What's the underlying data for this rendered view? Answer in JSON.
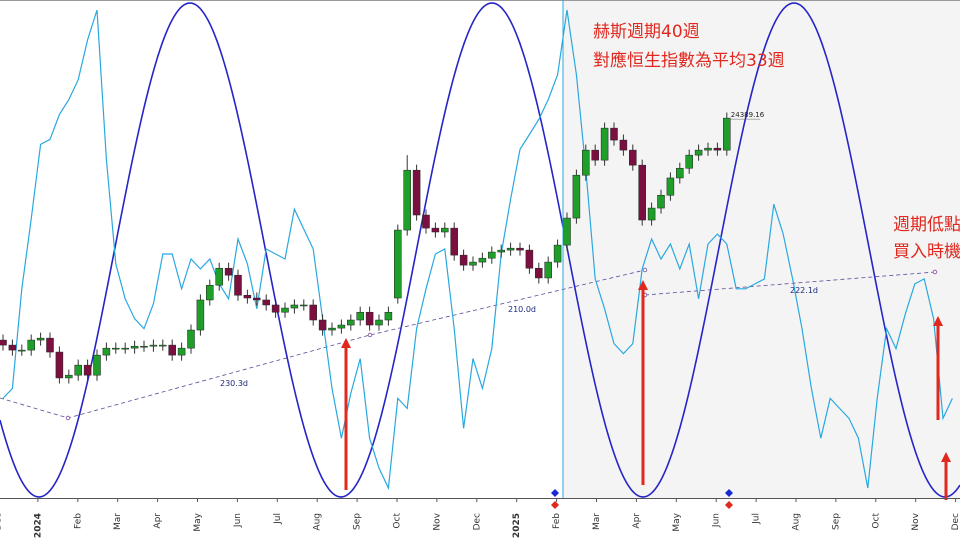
{
  "chart_data": {
    "type": "candlestick",
    "x_labels": [
      "Dec",
      "2024",
      "Feb",
      "Mar",
      "Apr",
      "May",
      "Jun",
      "Jul",
      "Aug",
      "Sep",
      "Oct",
      "Nov",
      "Dec",
      "2025",
      "Feb",
      "Mar",
      "Apr",
      "May",
      "Jun",
      "Jul",
      "Aug",
      "Sep",
      "Oct",
      "Nov",
      "Dec"
    ],
    "year_label_color": "#c00000",
    "ylim": [
      10750,
      28630
    ],
    "candles": {
      "up_color": "#1f9e2a",
      "down_color": "#7b1040",
      "open": [
        16420,
        16240,
        16060,
        16060,
        16420,
        16490,
        15990,
        15060,
        15160,
        15520,
        15160,
        15880,
        16130,
        16130,
        16130,
        16200,
        16200,
        16240,
        16240,
        15880,
        16130,
        16780,
        17860,
        18390,
        19000,
        18750,
        18030,
        17930,
        17860,
        17680,
        17420,
        17570,
        17680,
        17680,
        17140,
        16780,
        16850,
        16960,
        17140,
        17420,
        16960,
        17140,
        17930,
        20370,
        22520,
        20910,
        20440,
        20300,
        20440,
        19470,
        19110,
        19220,
        19360,
        19580,
        19650,
        19720,
        19650,
        19000,
        18650,
        19220,
        19830,
        20800,
        22340,
        23240,
        22880,
        24030,
        23600,
        23240,
        22700,
        20730,
        21160,
        21620,
        22240,
        22590,
        23060,
        23240,
        23310,
        23240
      ],
      "high": [
        16620,
        16440,
        16260,
        16620,
        16690,
        16690,
        16190,
        15360,
        15720,
        15720,
        16080,
        16330,
        16330,
        16330,
        16400,
        16400,
        16440,
        16440,
        16440,
        16330,
        16980,
        18060,
        18590,
        19200,
        19200,
        18950,
        18230,
        18130,
        18060,
        17880,
        17770,
        17880,
        17880,
        17880,
        17340,
        17050,
        17160,
        17340,
        17620,
        17620,
        17340,
        17620,
        20570,
        23060,
        22720,
        21110,
        20640,
        20640,
        20640,
        19670,
        19420,
        19560,
        19780,
        19850,
        19920,
        19920,
        19850,
        19200,
        19420,
        20030,
        21000,
        22540,
        23440,
        23440,
        24230,
        24230,
        23800,
        23440,
        22900,
        21360,
        21820,
        22440,
        22790,
        23260,
        23440,
        23510,
        23510,
        24590
      ],
      "low": [
        16040,
        15860,
        15860,
        15860,
        16220,
        15790,
        14860,
        14860,
        14960,
        14960,
        14960,
        15680,
        15930,
        15930,
        15930,
        16000,
        16000,
        16040,
        15680,
        15680,
        15930,
        16580,
        17660,
        18190,
        18550,
        17830,
        17730,
        17660,
        17480,
        17220,
        17220,
        17370,
        17480,
        16940,
        16580,
        16580,
        16650,
        16760,
        16940,
        16760,
        16760,
        16940,
        17730,
        20170,
        20710,
        20240,
        20100,
        20100,
        19270,
        18910,
        18910,
        19020,
        19160,
        19380,
        19450,
        19450,
        18800,
        18450,
        18450,
        19020,
        19630,
        20600,
        22140,
        22680,
        22680,
        23400,
        23040,
        22500,
        20530,
        20530,
        20960,
        21420,
        22040,
        22390,
        22860,
        23040,
        23040,
        23040
      ],
      "close": [
        16240,
        16060,
        16060,
        16420,
        16490,
        15990,
        15060,
        15160,
        15520,
        15160,
        15880,
        16130,
        16130,
        16130,
        16200,
        16200,
        16240,
        16240,
        15880,
        16130,
        16780,
        17860,
        18390,
        19000,
        18750,
        18030,
        17930,
        17860,
        17680,
        17420,
        17570,
        17680,
        17680,
        17140,
        16780,
        16850,
        16960,
        17140,
        17420,
        16960,
        17140,
        17420,
        20370,
        22520,
        20910,
        20440,
        20300,
        20440,
        19470,
        19110,
        19220,
        19360,
        19580,
        19650,
        19720,
        19650,
        19000,
        18650,
        19220,
        19830,
        20800,
        22340,
        23240,
        22880,
        24030,
        23600,
        23240,
        22700,
        20730,
        21160,
        21620,
        22240,
        22590,
        23060,
        23240,
        23310,
        23240,
        24389.16
      ]
    },
    "oscillator": {
      "color": "#29a8e0",
      "ylim": [
        0,
        100
      ],
      "values": [
        20,
        22,
        42,
        56,
        71,
        72,
        77,
        80,
        84,
        92,
        98,
        68,
        47,
        40,
        36,
        34,
        39,
        49,
        49,
        42,
        48,
        46,
        48,
        43,
        40,
        52,
        47,
        38,
        50,
        49,
        48,
        58,
        54,
        50,
        36,
        22,
        12,
        21,
        28,
        12,
        6,
        2,
        20,
        18,
        34,
        42,
        49,
        50,
        34,
        14,
        28,
        22,
        30,
        49,
        60,
        70,
        73,
        76,
        80,
        85,
        98,
        85,
        66,
        44,
        38,
        31,
        29,
        31,
        46,
        52,
        48,
        51,
        46,
        51,
        40,
        51,
        53,
        51,
        42,
        42,
        43,
        44,
        59,
        53,
        44,
        34,
        22,
        12,
        20,
        18,
        16,
        12,
        2,
        20,
        34,
        30,
        37,
        43,
        44,
        36,
        16,
        20
      ]
    },
    "cycle_labels": [
      "230.3d",
      "210.0d",
      "222.1d"
    ],
    "annotations": [
      "赫斯週期40週",
      "對應恒生指數為平均33週",
      "週期低點",
      "買入時機"
    ]
  }
}
